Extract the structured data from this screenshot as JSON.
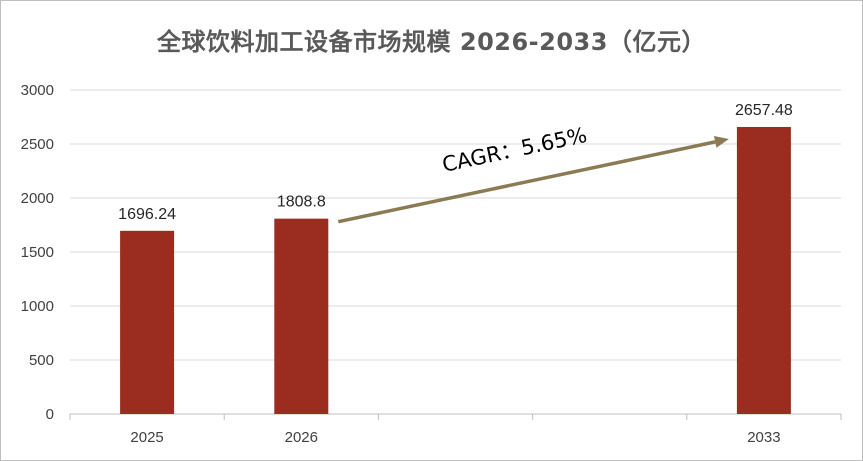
{
  "chart_data": {
    "type": "bar",
    "title": "全球饮料加工设备市场规模 2026-2033（亿元）",
    "xlabel": "",
    "ylabel": "",
    "categories": [
      "2025",
      "2026",
      "2033"
    ],
    "values": [
      1696.24,
      1808.8,
      2657.48
    ],
    "value_labels": [
      "1696.24",
      "1808.8",
      "2657.48"
    ],
    "ylim": [
      0,
      3000
    ],
    "yticks": [
      0,
      500,
      1000,
      1500,
      2000,
      2500,
      3000
    ],
    "grid": true,
    "legend": "none",
    "annotation": "CAGR：5.65%",
    "colors": {
      "bar": "#9a2c20",
      "arrow": "#8b7b55",
      "grid": "#d9d9d9"
    }
  }
}
